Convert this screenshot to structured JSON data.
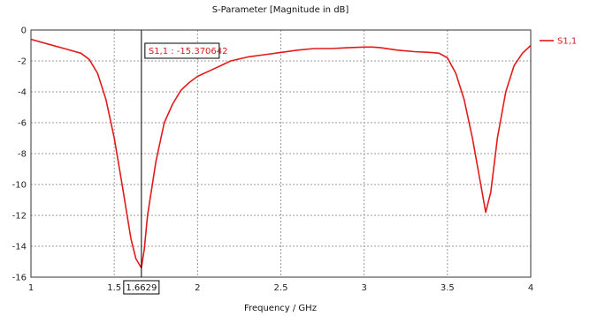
{
  "chart_data": {
    "type": "line",
    "title": "S-Parameter [Magnitude in dB]",
    "xlabel": "Frequency / GHz",
    "ylabel": "",
    "xlim": [
      1,
      4
    ],
    "ylim": [
      -16,
      0
    ],
    "xticks": [
      1,
      1.5,
      2,
      2.5,
      3,
      3.5,
      4
    ],
    "yticks": [
      0,
      -2,
      -4,
      -6,
      -8,
      -10,
      -12,
      -14,
      -16
    ],
    "grid": true,
    "legend": {
      "placement": "right",
      "entries": [
        "S1,1"
      ]
    },
    "colors": {
      "series": "#e31a1a",
      "grid": "#9a9a9a",
      "marker": "#000000"
    },
    "series": [
      {
        "name": "S1,1",
        "x": [
          1.0,
          1.1,
          1.2,
          1.3,
          1.35,
          1.4,
          1.45,
          1.5,
          1.55,
          1.6,
          1.63,
          1.6629,
          1.68,
          1.7,
          1.75,
          1.8,
          1.85,
          1.9,
          1.95,
          2.0,
          2.1,
          2.2,
          2.3,
          2.4,
          2.5,
          2.6,
          2.7,
          2.8,
          2.9,
          3.0,
          3.05,
          3.1,
          3.2,
          3.3,
          3.4,
          3.45,
          3.5,
          3.55,
          3.6,
          3.65,
          3.7,
          3.73,
          3.76,
          3.8,
          3.85,
          3.9,
          3.95,
          4.0
        ],
        "y": [
          -0.6,
          -0.9,
          -1.2,
          -1.5,
          -1.9,
          -2.8,
          -4.5,
          -7.0,
          -10.2,
          -13.5,
          -14.8,
          -15.4,
          -14.2,
          -12.0,
          -8.5,
          -6.0,
          -4.8,
          -3.9,
          -3.4,
          -3.0,
          -2.5,
          -2.0,
          -1.75,
          -1.6,
          -1.45,
          -1.3,
          -1.2,
          -1.2,
          -1.15,
          -1.1,
          -1.1,
          -1.15,
          -1.3,
          -1.4,
          -1.45,
          -1.5,
          -1.8,
          -2.8,
          -4.5,
          -7.0,
          -10.0,
          -11.8,
          -10.5,
          -7.0,
          -4.0,
          -2.3,
          -1.5,
          -1.0
        ]
      }
    ],
    "marker": {
      "x": 1.6629,
      "x_label": "1.6629",
      "y": -15.370642,
      "label": "S1,1 : -15.370642"
    }
  }
}
